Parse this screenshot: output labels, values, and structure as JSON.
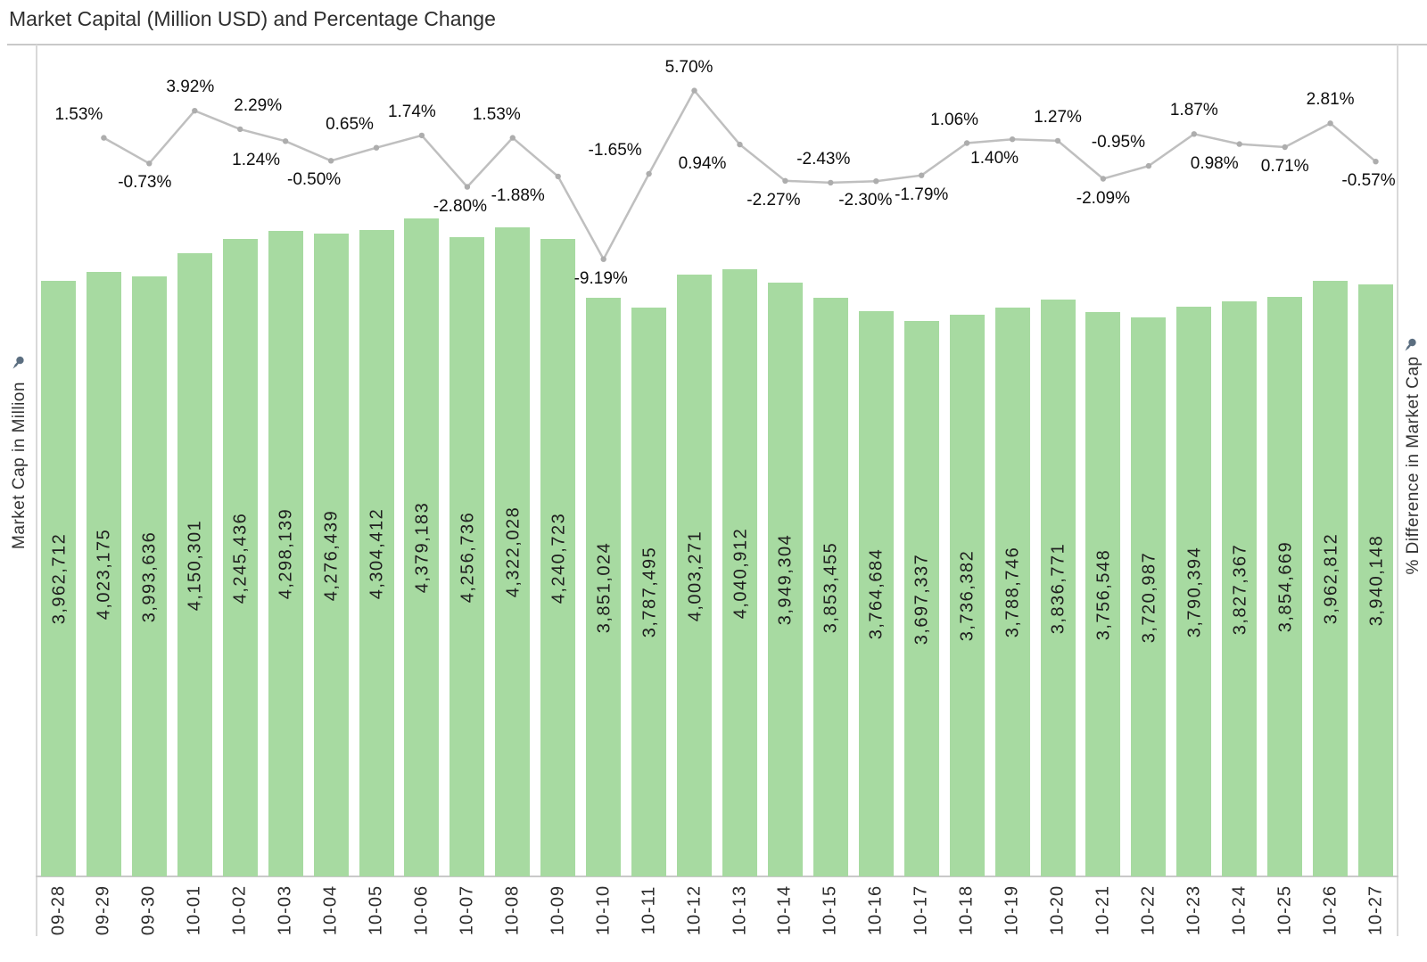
{
  "title": "Market Capital (Million USD) and Percentage Change",
  "left_axis": {
    "title": "Market Cap in Million",
    "pin_icon": "pushpin-icon"
  },
  "right_axis": {
    "title": "% Difference in Market Cap",
    "pin_icon": "pushpin-icon"
  },
  "colors": {
    "bar_fill": "#a7daa1",
    "line": "#bfbfbf",
    "marker": "#adadad",
    "bar_label_text": "#1f1f1f",
    "pct_label_text": "#0d0d0d",
    "axis_text": "#333333",
    "title_text": "#2e2e2e",
    "border": "#c9c9c9",
    "pin": "#5b6e80"
  },
  "chart_data": {
    "type": "combo-bar-line",
    "title": "Market Capital (Million USD) and Percentage Change",
    "categories": [
      "09-28",
      "09-29",
      "09-30",
      "10-01",
      "10-02",
      "10-03",
      "10-04",
      "10-05",
      "10-06",
      "10-07",
      "10-08",
      "10-09",
      "10-10",
      "10-11",
      "10-12",
      "10-13",
      "10-14",
      "10-15",
      "10-16",
      "10-17",
      "10-18",
      "10-19",
      "10-20",
      "10-21",
      "10-22",
      "10-23",
      "10-24",
      "10-25",
      "10-26",
      "10-27"
    ],
    "series": [
      {
        "name": "Market Cap (Million USD)",
        "type": "bar",
        "axis": "left",
        "values": [
          3962712,
          4023175,
          3993636,
          4150301,
          4245436,
          4298139,
          4276439,
          4304412,
          4379183,
          4256736,
          4322028,
          4240723,
          3851024,
          3787495,
          4003271,
          4040912,
          3949304,
          3853455,
          3764684,
          3697337,
          3736382,
          3788746,
          3836771,
          3756548,
          3720987,
          3790394,
          3827367,
          3854669,
          3962812,
          3940148
        ]
      },
      {
        "name": "% Difference in Market Cap",
        "type": "line",
        "axis": "right",
        "values": [
          null,
          1.53,
          -0.73,
          3.92,
          2.29,
          1.24,
          -0.5,
          0.65,
          1.74,
          -2.8,
          1.53,
          -1.88,
          -9.19,
          -1.65,
          5.7,
          0.94,
          -2.27,
          -2.43,
          -2.3,
          -1.79,
          1.06,
          1.4,
          1.27,
          -2.09,
          -0.95,
          1.87,
          0.98,
          0.71,
          2.81,
          -0.57
        ]
      }
    ],
    "ylabel_left": "Market Cap in Million",
    "ylabel_right": "% Difference in Market Cap",
    "bar_axis_starts_at_zero": true,
    "grid": false,
    "legend": false,
    "bar_labels_inside": true,
    "x_labels_rotated_90": true,
    "label_layout": {
      "pct": [
        {
          "pos": "above",
          "dx": -28
        },
        {
          "pos": "below",
          "dx": -5
        },
        {
          "pos": "above",
          "dx": -5
        },
        {
          "pos": "above",
          "dx": 20
        },
        {
          "pos": "below",
          "dx": -33
        },
        {
          "pos": "below",
          "dx": -19
        },
        {
          "pos": "above",
          "dx": -30
        },
        {
          "pos": "above",
          "dx": -11
        },
        {
          "pos": "below",
          "dx": -8
        },
        {
          "pos": "above",
          "dx": -18
        },
        {
          "pos": "below",
          "dx": -45
        },
        {
          "pos": "below",
          "dx": -3
        },
        {
          "pos": "above",
          "dx": -38
        },
        {
          "pos": "above",
          "dx": -6
        },
        {
          "pos": "below",
          "dx": -42
        },
        {
          "pos": "below",
          "dx": -13
        },
        {
          "pos": "above",
          "dx": -8
        },
        {
          "pos": "below",
          "dx": -12
        },
        {
          "pos": "below",
          "dx": 0
        },
        {
          "pos": "above",
          "dx": -14
        },
        {
          "pos": "below",
          "dx": -20
        },
        {
          "pos": "above",
          "dx": 0
        },
        {
          "pos": "below",
          "dx": 0
        },
        {
          "pos": "above",
          "dx": -34
        },
        {
          "pos": "above",
          "dx": 0
        },
        {
          "pos": "below",
          "dx": -28
        },
        {
          "pos": "below",
          "dx": 0
        },
        {
          "pos": "above",
          "dx": 0
        },
        {
          "pos": "below",
          "dx": -8
        }
      ]
    }
  }
}
